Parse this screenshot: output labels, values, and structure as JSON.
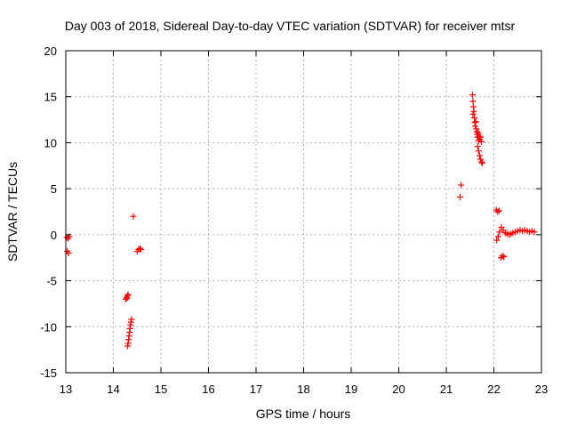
{
  "chart_data": {
    "type": "scatter",
    "title": "Day 003 of 2018, Sidereal Day-to-day VTEC variation (SDTVAR) for receiver mtsr",
    "xlabel": "GPS time / hours",
    "ylabel": "SDTVAR / TECUs",
    "xlim": [
      13,
      23
    ],
    "ylim": [
      -15,
      20
    ],
    "xticks": [
      "13",
      "14",
      "15",
      "16",
      "17",
      "18",
      "19",
      "20",
      "21",
      "22",
      "23"
    ],
    "yticks": [
      "20",
      "15",
      "10",
      "5",
      "0",
      "-5",
      "-10",
      "-15"
    ],
    "grid": true,
    "marker": "+",
    "color": "#ff0000",
    "series": [
      {
        "name": "SDTVAR",
        "points": [
          [
            13.02,
            -0.3
          ],
          [
            13.05,
            -0.4
          ],
          [
            13.07,
            -0.2
          ],
          [
            13.03,
            -1.8
          ],
          [
            13.06,
            -2.0
          ],
          [
            14.26,
            -7.0
          ],
          [
            14.28,
            -6.8
          ],
          [
            14.3,
            -6.6
          ],
          [
            14.31,
            -6.5
          ],
          [
            14.29,
            -6.9
          ],
          [
            14.3,
            -12.1
          ],
          [
            14.31,
            -11.8
          ],
          [
            14.32,
            -11.4
          ],
          [
            14.33,
            -11.0
          ],
          [
            14.34,
            -10.6
          ],
          [
            14.35,
            -10.2
          ],
          [
            14.36,
            -9.8
          ],
          [
            14.37,
            -9.5
          ],
          [
            14.38,
            -9.2
          ],
          [
            14.42,
            2.0
          ],
          [
            14.5,
            -1.8
          ],
          [
            14.53,
            -1.6
          ],
          [
            14.56,
            -1.5
          ],
          [
            14.58,
            -1.6
          ],
          [
            21.29,
            4.1
          ],
          [
            21.31,
            5.4
          ],
          [
            21.55,
            15.2
          ],
          [
            21.56,
            14.5
          ],
          [
            21.57,
            13.9
          ],
          [
            21.56,
            13.1
          ],
          [
            21.58,
            13.4
          ],
          [
            21.59,
            12.7
          ],
          [
            21.6,
            12.2
          ],
          [
            21.61,
            11.8
          ],
          [
            21.62,
            12.3
          ],
          [
            21.63,
            11.5
          ],
          [
            21.64,
            11.2
          ],
          [
            21.65,
            10.9
          ],
          [
            21.66,
            10.6
          ],
          [
            21.67,
            11.1
          ],
          [
            21.68,
            10.2
          ],
          [
            21.69,
            10.7
          ],
          [
            21.7,
            10.4
          ],
          [
            21.72,
            10.6
          ],
          [
            21.74,
            10.1
          ],
          [
            21.66,
            9.6
          ],
          [
            21.68,
            9.1
          ],
          [
            21.7,
            8.6
          ],
          [
            21.72,
            8.2
          ],
          [
            21.74,
            7.9
          ],
          [
            21.76,
            7.8
          ],
          [
            22.05,
            2.7
          ],
          [
            22.08,
            2.5
          ],
          [
            22.11,
            2.6
          ],
          [
            22.06,
            -0.6
          ],
          [
            22.09,
            -0.2
          ],
          [
            22.12,
            0.3
          ],
          [
            22.16,
            0.8
          ],
          [
            22.2,
            0.5
          ],
          [
            22.24,
            0.2
          ],
          [
            22.28,
            0.1
          ],
          [
            22.32,
            0.0
          ],
          [
            22.36,
            0.1
          ],
          [
            22.4,
            0.2
          ],
          [
            22.45,
            0.3
          ],
          [
            22.5,
            0.4
          ],
          [
            22.55,
            0.5
          ],
          [
            22.6,
            0.4
          ],
          [
            22.65,
            0.5
          ],
          [
            22.7,
            0.4
          ],
          [
            22.75,
            0.3
          ],
          [
            22.8,
            0.4
          ],
          [
            22.85,
            0.3
          ],
          [
            22.15,
            -2.5
          ],
          [
            22.18,
            -2.3
          ],
          [
            22.21,
            -2.4
          ]
        ]
      }
    ]
  }
}
